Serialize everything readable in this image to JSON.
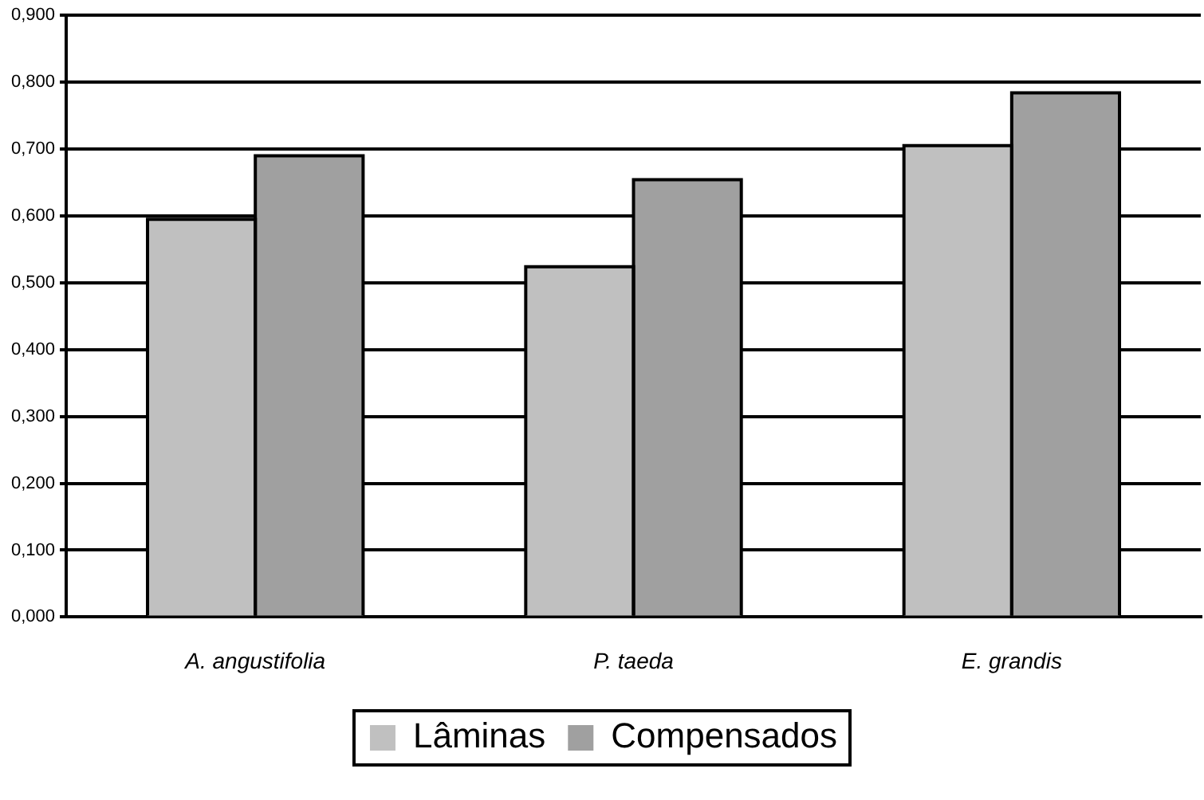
{
  "chart_data": {
    "type": "bar",
    "categories": [
      "A. angustifolia",
      "P. taeda",
      "E. grandis"
    ],
    "series": [
      {
        "name": "Lâminas",
        "color": "#c0c0c0",
        "values": [
          0.595,
          0.524,
          0.705
        ]
      },
      {
        "name": "Compensados",
        "color": "#a0a0a0",
        "values": [
          0.69,
          0.654,
          0.784
        ]
      }
    ],
    "ylim": [
      0,
      0.9
    ],
    "yticks": [
      {
        "value": 0,
        "label": "0,000"
      },
      {
        "value": 0.1,
        "label": "0,100"
      },
      {
        "value": 0.2,
        "label": "0,200"
      },
      {
        "value": 0.3,
        "label": "0,300"
      },
      {
        "value": 0.4,
        "label": "0,400"
      },
      {
        "value": 0.5,
        "label": "0,500"
      },
      {
        "value": 0.6,
        "label": "0,600"
      },
      {
        "value": 0.7,
        "label": "0,700"
      },
      {
        "value": 0.8,
        "label": "0,800"
      },
      {
        "value": 0.9,
        "label": "0,900"
      }
    ],
    "grid": "y",
    "legend": "bottom"
  }
}
